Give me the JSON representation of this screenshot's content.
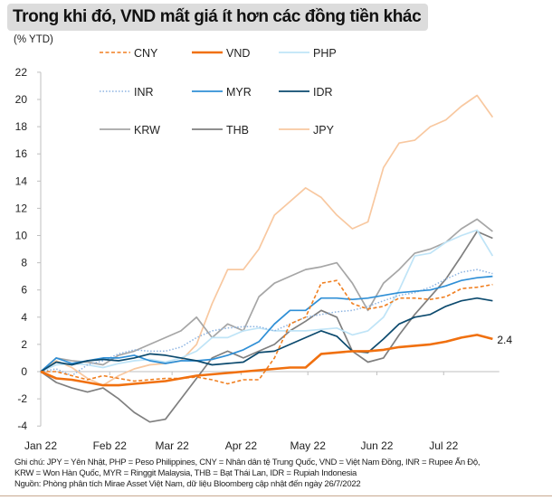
{
  "title": "Trong khi đó, VND mất giá ít hơn các đồng tiền khác",
  "notes": {
    "line1": "Ghi chú: JPY = Yên Nhật, PHP = Peso Philippines, CNY = Nhân dân tệ Trung Quốc, VND = Việt Nam Đồng, INR = Rupee Ấn Độ,",
    "line2": "KRW = Won Hàn Quốc, MYR = Ringgit Malaysia, THB = Bạt Thái Lan, IDR = Rupiah Indonesia",
    "line3": "Nguồn: Phòng phân tích Mirae Asset Việt Nam, dữ liệu Bloomberg cập nhật đến ngày 26/7/2022"
  },
  "chart_data": {
    "type": "line",
    "title": "Trong khi đó, VND mất giá ít hơn các đồng tiền khác",
    "ylabel": "(% YTD)",
    "xlabel": "",
    "ylim": [
      -4,
      22
    ],
    "yticks": [
      -4,
      -2,
      0,
      2,
      4,
      6,
      8,
      10,
      12,
      14,
      16,
      18,
      20,
      22
    ],
    "xlim_days": [
      0,
      206
    ],
    "xticks": [
      {
        "label": "Jan 22",
        "day": 0
      },
      {
        "label": "Feb 22",
        "day": 31
      },
      {
        "label": "Mar 22",
        "day": 59
      },
      {
        "label": "Apr 22",
        "day": 90
      },
      {
        "label": "May 22",
        "day": 120
      },
      {
        "label": "Jun 22",
        "day": 151
      },
      {
        "label": "Jul 22",
        "day": 181
      }
    ],
    "x_days": [
      0,
      7,
      14,
      21,
      28,
      35,
      42,
      49,
      56,
      63,
      70,
      77,
      84,
      91,
      98,
      105,
      112,
      119,
      126,
      133,
      140,
      147,
      154,
      161,
      168,
      175,
      182,
      189,
      196,
      203
    ],
    "legend_position": "top-left",
    "annotation": {
      "series": "VND",
      "text": "2.4"
    },
    "series": [
      {
        "name": "CNY",
        "color": "#f07f20",
        "style": "dashed",
        "values": [
          0,
          0,
          -0.3,
          -0.6,
          -0.3,
          -0.5,
          -0.7,
          -0.6,
          -0.5,
          -0.5,
          -0.4,
          -0.6,
          -0.9,
          -0.6,
          -0.6,
          1,
          3.5,
          4,
          6.5,
          6.7,
          5,
          4.6,
          4.8,
          5.4,
          5.4,
          5.3,
          5.5,
          6.1,
          6.2,
          6.4
        ]
      },
      {
        "name": "VND",
        "color": "#f0700f",
        "style": "thick",
        "values": [
          0,
          -0.5,
          -0.6,
          -0.8,
          -1,
          -1,
          -0.9,
          -0.8,
          -0.7,
          -0.5,
          -0.3,
          -0.2,
          -0.1,
          0,
          0.1,
          0.2,
          0.3,
          0.3,
          1.3,
          1.4,
          1.5,
          1.5,
          1.6,
          1.8,
          1.9,
          2,
          2.2,
          2.5,
          2.7,
          2.4
        ]
      },
      {
        "name": "PHP",
        "color": "#bfe4f7",
        "style": "solid",
        "values": [
          0,
          0.5,
          0.6,
          0.5,
          0.3,
          0.6,
          0.8,
          0.9,
          0.7,
          1,
          1.5,
          2.5,
          2.5,
          3,
          3.2,
          3,
          3,
          3,
          3.1,
          3.2,
          2.7,
          3,
          4,
          6,
          8.5,
          8.7,
          9.5,
          10,
          10.4,
          8.5
        ]
      },
      {
        "name": "INR",
        "color": "#8db4e2",
        "style": "dotted",
        "values": [
          0,
          0.2,
          -0.3,
          0.5,
          0.8,
          1.3,
          1.6,
          1.5,
          1.5,
          1.8,
          2.5,
          3,
          3.2,
          3.3,
          3.3,
          3,
          3.5,
          4,
          4.2,
          4.4,
          4.5,
          4.8,
          5.2,
          5.6,
          5.8,
          6.2,
          6.8,
          7.3,
          7.5,
          7.2
        ]
      },
      {
        "name": "MYR",
        "color": "#2f8fd6",
        "style": "solid",
        "values": [
          0,
          1,
          0.6,
          0.8,
          1,
          1,
          1.2,
          0.8,
          0.6,
          0.8,
          0.8,
          0.9,
          1.2,
          1.6,
          2.2,
          3.5,
          4.5,
          4.5,
          5.4,
          5.4,
          5.3,
          5.4,
          5.6,
          5.8,
          5.9,
          6,
          6.3,
          6.7,
          6.9,
          7
        ]
      },
      {
        "name": "IDR",
        "color": "#0c4a6e",
        "style": "solid",
        "values": [
          0,
          0.7,
          0.5,
          0.8,
          0.9,
          0.8,
          1,
          1.3,
          1.2,
          1,
          0.8,
          0.5,
          0.6,
          0.7,
          1.4,
          1.5,
          2,
          2.5,
          3,
          2.6,
          1.5,
          1.4,
          2.4,
          3.5,
          4,
          4.2,
          4.8,
          5.2,
          5.4,
          5.2
        ]
      },
      {
        "name": "KRW",
        "color": "#a6a6a6",
        "style": "solid",
        "values": [
          0,
          1,
          0.8,
          0.7,
          0.5,
          1.2,
          1.5,
          2,
          2.5,
          3,
          4,
          2.5,
          3.5,
          3,
          5.5,
          6.5,
          7,
          7.5,
          7.7,
          8,
          6.5,
          4.5,
          6.5,
          7.5,
          8.7,
          9,
          9.5,
          10.5,
          11.2,
          10.3
        ]
      },
      {
        "name": "THB",
        "color": "#7f7f7f",
        "style": "solid",
        "values": [
          0,
          -0.8,
          -1.2,
          -1.5,
          -1.2,
          -2,
          -3,
          -3.7,
          -3.5,
          -2,
          -0.5,
          1,
          1.5,
          1,
          1.5,
          2,
          3,
          3.7,
          4.5,
          4,
          1.5,
          0.7,
          1,
          2.7,
          4.2,
          5.5,
          6.8,
          8.5,
          10.3,
          9.8
        ]
      },
      {
        "name": "JPY",
        "color": "#f8c8a0",
        "style": "solid",
        "values": [
          0,
          0.8,
          0.3,
          -0.5,
          -1,
          -0.3,
          0.2,
          0.5,
          0.6,
          0.8,
          2,
          5,
          7.5,
          7.5,
          9,
          11.5,
          12.5,
          13.5,
          12.8,
          11.5,
          10.5,
          11,
          15,
          16.8,
          17,
          18,
          18.5,
          19.5,
          20.3,
          18.7
        ]
      }
    ]
  }
}
